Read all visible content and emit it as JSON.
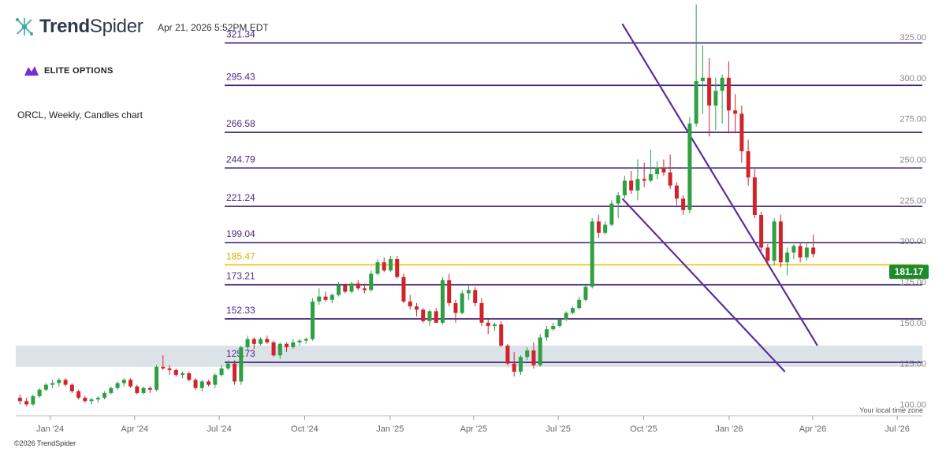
{
  "header": {
    "brand_bold": "Trend",
    "brand_light": "Spider",
    "timestamp": "Apr 21, 2026 5:52PM EDT",
    "sponsor": "ELITE OPTIONS",
    "chart_desc": "ORCL, Weekly, Candles chart",
    "timezone_note": "Your local time zone",
    "copyright": "©2026 TrendSpider"
  },
  "colors": {
    "up": "#2ea043",
    "down": "#d0232a",
    "level": "#3a1a6e",
    "level_label": "#4b2a86",
    "highlight": "#f2c200",
    "trendline": "#5b2d9c",
    "zone": "#dce3e8",
    "price_tag": "#1f8a2a",
    "axis_text": "#666666",
    "brand_icon": "#3aa99f",
    "sponsor_icon": "#7a2bd6"
  },
  "chart_data": {
    "type": "candlestick",
    "symbol": "ORCL",
    "interval": "Weekly",
    "ylim": [
      93,
      338
    ],
    "x_range": [
      "2023-11-25",
      "2026-07-28"
    ],
    "y_ticks": [
      "100.00",
      "125.00",
      "150.00",
      "175.00",
      "200.00",
      "225.00",
      "250.00",
      "275.00",
      "300.00",
      "325.00"
    ],
    "y_tick_values": [
      100,
      125,
      150,
      175,
      200,
      225,
      250,
      275,
      300,
      325
    ],
    "x_ticks": [
      {
        "label": "Jan '24",
        "date": "2024-01-01"
      },
      {
        "label": "Apr '24",
        "date": "2024-04-01"
      },
      {
        "label": "Jul '24",
        "date": "2024-07-01"
      },
      {
        "label": "Oct '24",
        "date": "2024-10-01"
      },
      {
        "label": "Jan '25",
        "date": "2025-01-01"
      },
      {
        "label": "Apr '25",
        "date": "2025-04-01"
      },
      {
        "label": "Jul '25",
        "date": "2025-07-01"
      },
      {
        "label": "Oct '25",
        "date": "2025-10-01"
      },
      {
        "label": "Jan '26",
        "date": "2026-01-01"
      },
      {
        "label": "Apr '26",
        "date": "2026-04-01"
      },
      {
        "label": "Jul '26",
        "date": "2026-07-01"
      }
    ],
    "levels": [
      {
        "label": "321.34",
        "value": 321.34
      },
      {
        "label": "295.43",
        "value": 295.43
      },
      {
        "label": "266.58",
        "value": 266.58
      },
      {
        "label": "244.79",
        "value": 244.79
      },
      {
        "label": "221.24",
        "value": 221.24
      },
      {
        "label": "199.04",
        "value": 199.04
      },
      {
        "label": "185.47",
        "value": 185.47,
        "highlight": true
      },
      {
        "label": "173.21",
        "value": 173.21
      },
      {
        "label": "152.33",
        "value": 152.33
      },
      {
        "label": "125.73",
        "value": 125.73
      }
    ],
    "zone": {
      "from": 123,
      "to": 136
    },
    "trendlines": [
      {
        "from": {
          "date": "2025-09-08",
          "price": 333
        },
        "to": {
          "date": "2026-04-06",
          "price": 136
        }
      },
      {
        "from": {
          "date": "2025-09-08",
          "price": 226
        },
        "to": {
          "date": "2026-03-02",
          "price": 120
        }
      }
    ],
    "last_price": "181.17",
    "last_price_value": 181.17,
    "candles": [
      {
        "date": "2023-11-27",
        "o": 104,
        "h": 106,
        "l": 100,
        "c": 102
      },
      {
        "date": "2023-12-04",
        "o": 102,
        "h": 104,
        "l": 99,
        "c": 100
      },
      {
        "date": "2023-12-11",
        "o": 100,
        "h": 106,
        "l": 99,
        "c": 105
      },
      {
        "date": "2023-12-18",
        "o": 105,
        "h": 110,
        "l": 104,
        "c": 109
      },
      {
        "date": "2023-12-25",
        "o": 109,
        "h": 113,
        "l": 108,
        "c": 112
      },
      {
        "date": "2024-01-01",
        "o": 112,
        "h": 115,
        "l": 110,
        "c": 113
      },
      {
        "date": "2024-01-08",
        "o": 113,
        "h": 116,
        "l": 111,
        "c": 115
      },
      {
        "date": "2024-01-15",
        "o": 115,
        "h": 116,
        "l": 111,
        "c": 112
      },
      {
        "date": "2024-01-22",
        "o": 112,
        "h": 113,
        "l": 107,
        "c": 108
      },
      {
        "date": "2024-01-29",
        "o": 108,
        "h": 109,
        "l": 103,
        "c": 104
      },
      {
        "date": "2024-02-05",
        "o": 104,
        "h": 105,
        "l": 101,
        "c": 102
      },
      {
        "date": "2024-02-12",
        "o": 102,
        "h": 104,
        "l": 100,
        "c": 103
      },
      {
        "date": "2024-02-19",
        "o": 103,
        "h": 105,
        "l": 101,
        "c": 104
      },
      {
        "date": "2024-02-26",
        "o": 104,
        "h": 108,
        "l": 103,
        "c": 107
      },
      {
        "date": "2024-03-04",
        "o": 107,
        "h": 111,
        "l": 106,
        "c": 110
      },
      {
        "date": "2024-03-11",
        "o": 110,
        "h": 114,
        "l": 109,
        "c": 113
      },
      {
        "date": "2024-03-18",
        "o": 113,
        "h": 116,
        "l": 111,
        "c": 115
      },
      {
        "date": "2024-03-25",
        "o": 115,
        "h": 116,
        "l": 110,
        "c": 111
      },
      {
        "date": "2024-04-01",
        "o": 111,
        "h": 112,
        "l": 106,
        "c": 107
      },
      {
        "date": "2024-04-08",
        "o": 107,
        "h": 111,
        "l": 106,
        "c": 110
      },
      {
        "date": "2024-04-15",
        "o": 110,
        "h": 111,
        "l": 107,
        "c": 109
      },
      {
        "date": "2024-04-22",
        "o": 109,
        "h": 124,
        "l": 108,
        "c": 123
      },
      {
        "date": "2024-04-29",
        "o": 123,
        "h": 130,
        "l": 121,
        "c": 122
      },
      {
        "date": "2024-05-06",
        "o": 122,
        "h": 124,
        "l": 118,
        "c": 121
      },
      {
        "date": "2024-05-13",
        "o": 121,
        "h": 122,
        "l": 117,
        "c": 118
      },
      {
        "date": "2024-05-20",
        "o": 118,
        "h": 120,
        "l": 116,
        "c": 119
      },
      {
        "date": "2024-05-27",
        "o": 119,
        "h": 120,
        "l": 114,
        "c": 115
      },
      {
        "date": "2024-06-03",
        "o": 115,
        "h": 116,
        "l": 109,
        "c": 110
      },
      {
        "date": "2024-06-10",
        "o": 110,
        "h": 115,
        "l": 108,
        "c": 114
      },
      {
        "date": "2024-06-17",
        "o": 114,
        "h": 115,
        "l": 111,
        "c": 112
      },
      {
        "date": "2024-06-24",
        "o": 112,
        "h": 119,
        "l": 110,
        "c": 118
      },
      {
        "date": "2024-07-01",
        "o": 118,
        "h": 124,
        "l": 117,
        "c": 122
      },
      {
        "date": "2024-07-08",
        "o": 122,
        "h": 127,
        "l": 121,
        "c": 125
      },
      {
        "date": "2024-07-15",
        "o": 125,
        "h": 127,
        "l": 112,
        "c": 114
      },
      {
        "date": "2024-07-22",
        "o": 114,
        "h": 136,
        "l": 112,
        "c": 135
      },
      {
        "date": "2024-07-29",
        "o": 135,
        "h": 142,
        "l": 133,
        "c": 140
      },
      {
        "date": "2024-08-05",
        "o": 140,
        "h": 141,
        "l": 134,
        "c": 137
      },
      {
        "date": "2024-08-12",
        "o": 137,
        "h": 141,
        "l": 136,
        "c": 140
      },
      {
        "date": "2024-08-19",
        "o": 140,
        "h": 142,
        "l": 137,
        "c": 138
      },
      {
        "date": "2024-08-26",
        "o": 138,
        "h": 139,
        "l": 129,
        "c": 130
      },
      {
        "date": "2024-09-02",
        "o": 130,
        "h": 138,
        "l": 128,
        "c": 137
      },
      {
        "date": "2024-09-09",
        "o": 137,
        "h": 138,
        "l": 132,
        "c": 135
      },
      {
        "date": "2024-09-16",
        "o": 135,
        "h": 140,
        "l": 134,
        "c": 138
      },
      {
        "date": "2024-09-23",
        "o": 138,
        "h": 140,
        "l": 136,
        "c": 139
      },
      {
        "date": "2024-09-30",
        "o": 139,
        "h": 141,
        "l": 137,
        "c": 140
      },
      {
        "date": "2024-10-07",
        "o": 140,
        "h": 165,
        "l": 139,
        "c": 163
      },
      {
        "date": "2024-10-14",
        "o": 163,
        "h": 171,
        "l": 161,
        "c": 166
      },
      {
        "date": "2024-10-21",
        "o": 166,
        "h": 169,
        "l": 163,
        "c": 164
      },
      {
        "date": "2024-10-28",
        "o": 164,
        "h": 168,
        "l": 162,
        "c": 167
      },
      {
        "date": "2024-11-04",
        "o": 167,
        "h": 175,
        "l": 166,
        "c": 173
      },
      {
        "date": "2024-11-11",
        "o": 173,
        "h": 174,
        "l": 168,
        "c": 169
      },
      {
        "date": "2024-11-18",
        "o": 169,
        "h": 175,
        "l": 168,
        "c": 174
      },
      {
        "date": "2024-11-25",
        "o": 174,
        "h": 176,
        "l": 170,
        "c": 171
      },
      {
        "date": "2024-12-02",
        "o": 171,
        "h": 174,
        "l": 168,
        "c": 170
      },
      {
        "date": "2024-12-09",
        "o": 170,
        "h": 182,
        "l": 169,
        "c": 180
      },
      {
        "date": "2024-12-16",
        "o": 180,
        "h": 189,
        "l": 179,
        "c": 187
      },
      {
        "date": "2024-12-23",
        "o": 187,
        "h": 190,
        "l": 181,
        "c": 182
      },
      {
        "date": "2024-12-30",
        "o": 182,
        "h": 191,
        "l": 181,
        "c": 189
      },
      {
        "date": "2025-01-06",
        "o": 189,
        "h": 191,
        "l": 177,
        "c": 178
      },
      {
        "date": "2025-01-13",
        "o": 178,
        "h": 180,
        "l": 162,
        "c": 163
      },
      {
        "date": "2025-01-20",
        "o": 163,
        "h": 167,
        "l": 158,
        "c": 160
      },
      {
        "date": "2025-01-27",
        "o": 160,
        "h": 162,
        "l": 154,
        "c": 158
      },
      {
        "date": "2025-02-03",
        "o": 158,
        "h": 159,
        "l": 150,
        "c": 151
      },
      {
        "date": "2025-02-10",
        "o": 151,
        "h": 158,
        "l": 148,
        "c": 157
      },
      {
        "date": "2025-02-17",
        "o": 157,
        "h": 159,
        "l": 150,
        "c": 150
      },
      {
        "date": "2025-02-24",
        "o": 150,
        "h": 178,
        "l": 149,
        "c": 176
      },
      {
        "date": "2025-03-03",
        "o": 176,
        "h": 180,
        "l": 160,
        "c": 162
      },
      {
        "date": "2025-03-10",
        "o": 162,
        "h": 164,
        "l": 150,
        "c": 156
      },
      {
        "date": "2025-03-17",
        "o": 156,
        "h": 170,
        "l": 155,
        "c": 168
      },
      {
        "date": "2025-03-24",
        "o": 168,
        "h": 173,
        "l": 164,
        "c": 170
      },
      {
        "date": "2025-03-31",
        "o": 170,
        "h": 172,
        "l": 160,
        "c": 162
      },
      {
        "date": "2025-04-07",
        "o": 162,
        "h": 165,
        "l": 148,
        "c": 150
      },
      {
        "date": "2025-04-14",
        "o": 150,
        "h": 152,
        "l": 143,
        "c": 148
      },
      {
        "date": "2025-04-21",
        "o": 148,
        "h": 150,
        "l": 145,
        "c": 149
      },
      {
        "date": "2025-04-28",
        "o": 149,
        "h": 151,
        "l": 135,
        "c": 136
      },
      {
        "date": "2025-05-05",
        "o": 136,
        "h": 137,
        "l": 124,
        "c": 125
      },
      {
        "date": "2025-05-12",
        "o": 125,
        "h": 132,
        "l": 117,
        "c": 120
      },
      {
        "date": "2025-05-19",
        "o": 120,
        "h": 130,
        "l": 118,
        "c": 129
      },
      {
        "date": "2025-05-26",
        "o": 129,
        "h": 135,
        "l": 127,
        "c": 133
      },
      {
        "date": "2025-06-02",
        "o": 133,
        "h": 138,
        "l": 122,
        "c": 124
      },
      {
        "date": "2025-06-09",
        "o": 124,
        "h": 143,
        "l": 123,
        "c": 141
      },
      {
        "date": "2025-06-16",
        "o": 141,
        "h": 148,
        "l": 139,
        "c": 146
      },
      {
        "date": "2025-06-23",
        "o": 146,
        "h": 150,
        "l": 145,
        "c": 148
      },
      {
        "date": "2025-06-30",
        "o": 148,
        "h": 153,
        "l": 147,
        "c": 152
      },
      {
        "date": "2025-07-07",
        "o": 152,
        "h": 157,
        "l": 151,
        "c": 156
      },
      {
        "date": "2025-07-14",
        "o": 156,
        "h": 160,
        "l": 155,
        "c": 159
      },
      {
        "date": "2025-07-21",
        "o": 159,
        "h": 166,
        "l": 158,
        "c": 164
      },
      {
        "date": "2025-07-28",
        "o": 164,
        "h": 174,
        "l": 163,
        "c": 172
      },
      {
        "date": "2025-08-04",
        "o": 172,
        "h": 214,
        "l": 171,
        "c": 212
      },
      {
        "date": "2025-08-11",
        "o": 212,
        "h": 216,
        "l": 202,
        "c": 205
      },
      {
        "date": "2025-08-18",
        "o": 205,
        "h": 212,
        "l": 204,
        "c": 210
      },
      {
        "date": "2025-08-25",
        "o": 210,
        "h": 225,
        "l": 209,
        "c": 223
      },
      {
        "date": "2025-09-01",
        "o": 223,
        "h": 230,
        "l": 214,
        "c": 228
      },
      {
        "date": "2025-09-08",
        "o": 228,
        "h": 240,
        "l": 226,
        "c": 237
      },
      {
        "date": "2025-09-15",
        "o": 237,
        "h": 243,
        "l": 229,
        "c": 231
      },
      {
        "date": "2025-09-22",
        "o": 231,
        "h": 250,
        "l": 225,
        "c": 238
      },
      {
        "date": "2025-09-29",
        "o": 238,
        "h": 248,
        "l": 233,
        "c": 237
      },
      {
        "date": "2025-10-06",
        "o": 237,
        "h": 256,
        "l": 236,
        "c": 241
      },
      {
        "date": "2025-10-13",
        "o": 241,
        "h": 249,
        "l": 238,
        "c": 245
      },
      {
        "date": "2025-10-20",
        "o": 245,
        "h": 250,
        "l": 240,
        "c": 242
      },
      {
        "date": "2025-10-27",
        "o": 242,
        "h": 253,
        "l": 232,
        "c": 234
      },
      {
        "date": "2025-11-03",
        "o": 234,
        "h": 236,
        "l": 222,
        "c": 226
      },
      {
        "date": "2025-11-10",
        "o": 226,
        "h": 228,
        "l": 216,
        "c": 219
      },
      {
        "date": "2025-11-17",
        "o": 219,
        "h": 276,
        "l": 217,
        "c": 272
      },
      {
        "date": "2025-11-24",
        "o": 272,
        "h": 345,
        "l": 270,
        "c": 298
      },
      {
        "date": "2025-12-01",
        "o": 298,
        "h": 320,
        "l": 278,
        "c": 300
      },
      {
        "date": "2025-12-08",
        "o": 300,
        "h": 312,
        "l": 264,
        "c": 283
      },
      {
        "date": "2025-12-15",
        "o": 283,
        "h": 300,
        "l": 268,
        "c": 292
      },
      {
        "date": "2025-12-22",
        "o": 292,
        "h": 302,
        "l": 272,
        "c": 300
      },
      {
        "date": "2025-12-29",
        "o": 300,
        "h": 310,
        "l": 266,
        "c": 280
      },
      {
        "date": "2026-01-05",
        "o": 280,
        "h": 290,
        "l": 266,
        "c": 278
      },
      {
        "date": "2026-01-12",
        "o": 278,
        "h": 283,
        "l": 248,
        "c": 255
      },
      {
        "date": "2026-01-19",
        "o": 255,
        "h": 262,
        "l": 234,
        "c": 239
      },
      {
        "date": "2026-01-26",
        "o": 239,
        "h": 244,
        "l": 214,
        "c": 216
      },
      {
        "date": "2026-02-02",
        "o": 216,
        "h": 218,
        "l": 194,
        "c": 196
      },
      {
        "date": "2026-02-09",
        "o": 196,
        "h": 198,
        "l": 185,
        "c": 188
      },
      {
        "date": "2026-02-16",
        "o": 188,
        "h": 214,
        "l": 185,
        "c": 212
      },
      {
        "date": "2026-02-23",
        "o": 212,
        "h": 216,
        "l": 184,
        "c": 187
      },
      {
        "date": "2026-03-02",
        "o": 187,
        "h": 196,
        "l": 179,
        "c": 193
      },
      {
        "date": "2026-03-09",
        "o": 193,
        "h": 198,
        "l": 189,
        "c": 197
      },
      {
        "date": "2026-03-16",
        "o": 197,
        "h": 199,
        "l": 187,
        "c": 190
      },
      {
        "date": "2026-03-23",
        "o": 190,
        "h": 199,
        "l": 188,
        "c": 196
      },
      {
        "date": "2026-03-30",
        "o": 196,
        "h": 204,
        "l": 190,
        "c": 192
      }
    ]
  }
}
